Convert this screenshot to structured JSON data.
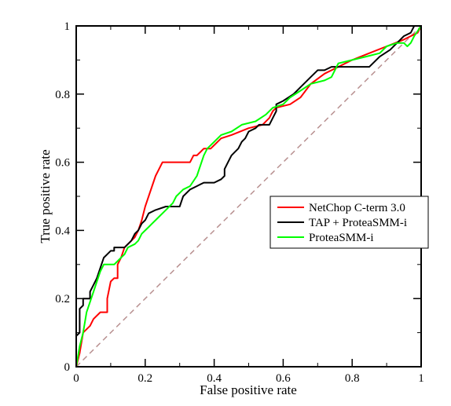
{
  "chart_data": {
    "type": "line",
    "xlabel": "False positive rate",
    "ylabel": "True positive rate",
    "xlim": [
      0,
      1
    ],
    "ylim": [
      0,
      1
    ],
    "xticks": [
      0,
      0.2,
      0.4,
      0.6,
      0.8,
      1
    ],
    "yticks": [
      0,
      0.2,
      0.4,
      0.6,
      0.8,
      1
    ],
    "xtick_labels": [
      "0",
      "0.2",
      "0.4",
      "0.6",
      "0.8",
      "1"
    ],
    "ytick_labels": [
      "0",
      "0.2",
      "0.4",
      "0.6",
      "0.8",
      "1"
    ],
    "grid": false,
    "legend_position": "right",
    "series": [
      {
        "name": "NetChop C-term 3.0",
        "color": "#ff0000",
        "points": [
          [
            0,
            0
          ],
          [
            0.01,
            0.04
          ],
          [
            0.02,
            0.1
          ],
          [
            0.04,
            0.12
          ],
          [
            0.05,
            0.14
          ],
          [
            0.07,
            0.16
          ],
          [
            0.09,
            0.16
          ],
          [
            0.09,
            0.2
          ],
          [
            0.1,
            0.25
          ],
          [
            0.11,
            0.26
          ],
          [
            0.12,
            0.26
          ],
          [
            0.12,
            0.3
          ],
          [
            0.13,
            0.32
          ],
          [
            0.14,
            0.35
          ],
          [
            0.15,
            0.36
          ],
          [
            0.16,
            0.37
          ],
          [
            0.17,
            0.38
          ],
          [
            0.18,
            0.4
          ],
          [
            0.19,
            0.43
          ],
          [
            0.2,
            0.47
          ],
          [
            0.21,
            0.5
          ],
          [
            0.22,
            0.53
          ],
          [
            0.23,
            0.56
          ],
          [
            0.24,
            0.58
          ],
          [
            0.25,
            0.6
          ],
          [
            0.26,
            0.6
          ],
          [
            0.27,
            0.6
          ],
          [
            0.31,
            0.6
          ],
          [
            0.33,
            0.6
          ],
          [
            0.34,
            0.62
          ],
          [
            0.35,
            0.62
          ],
          [
            0.36,
            0.63
          ],
          [
            0.37,
            0.64
          ],
          [
            0.39,
            0.64
          ],
          [
            0.4,
            0.65
          ],
          [
            0.42,
            0.67
          ],
          [
            0.45,
            0.68
          ],
          [
            0.5,
            0.7
          ],
          [
            0.54,
            0.71
          ],
          [
            0.56,
            0.73
          ],
          [
            0.57,
            0.75
          ],
          [
            0.58,
            0.76
          ],
          [
            0.62,
            0.77
          ],
          [
            0.65,
            0.79
          ],
          [
            0.68,
            0.83
          ],
          [
            0.72,
            0.86
          ],
          [
            0.76,
            0.88
          ],
          [
            0.8,
            0.9
          ],
          [
            0.85,
            0.92
          ],
          [
            0.9,
            0.94
          ],
          [
            0.95,
            0.96
          ],
          [
            0.97,
            0.97
          ],
          [
            0.99,
            0.98
          ],
          [
            1,
            1
          ]
        ]
      },
      {
        "name": "TAP + ProteaSMM-i",
        "color": "#000000",
        "points": [
          [
            0,
            0
          ],
          [
            0,
            0.09
          ],
          [
            0.01,
            0.1
          ],
          [
            0.01,
            0.17
          ],
          [
            0.02,
            0.18
          ],
          [
            0.02,
            0.2
          ],
          [
            0.04,
            0.2
          ],
          [
            0.04,
            0.22
          ],
          [
            0.05,
            0.24
          ],
          [
            0.06,
            0.26
          ],
          [
            0.07,
            0.29
          ],
          [
            0.08,
            0.32
          ],
          [
            0.09,
            0.33
          ],
          [
            0.1,
            0.34
          ],
          [
            0.11,
            0.34
          ],
          [
            0.11,
            0.35
          ],
          [
            0.14,
            0.35
          ],
          [
            0.15,
            0.36
          ],
          [
            0.16,
            0.37
          ],
          [
            0.17,
            0.39
          ],
          [
            0.18,
            0.4
          ],
          [
            0.19,
            0.42
          ],
          [
            0.2,
            0.43
          ],
          [
            0.21,
            0.45
          ],
          [
            0.23,
            0.46
          ],
          [
            0.26,
            0.47
          ],
          [
            0.3,
            0.47
          ],
          [
            0.31,
            0.5
          ],
          [
            0.33,
            0.52
          ],
          [
            0.35,
            0.53
          ],
          [
            0.37,
            0.54
          ],
          [
            0.4,
            0.54
          ],
          [
            0.42,
            0.55
          ],
          [
            0.43,
            0.56
          ],
          [
            0.43,
            0.58
          ],
          [
            0.44,
            0.6
          ],
          [
            0.45,
            0.62
          ],
          [
            0.46,
            0.63
          ],
          [
            0.47,
            0.64
          ],
          [
            0.48,
            0.66
          ],
          [
            0.49,
            0.67
          ],
          [
            0.5,
            0.69
          ],
          [
            0.52,
            0.7
          ],
          [
            0.53,
            0.71
          ],
          [
            0.56,
            0.71
          ],
          [
            0.57,
            0.73
          ],
          [
            0.58,
            0.75
          ],
          [
            0.58,
            0.77
          ],
          [
            0.6,
            0.78
          ],
          [
            0.63,
            0.8
          ],
          [
            0.64,
            0.81
          ],
          [
            0.65,
            0.82
          ],
          [
            0.66,
            0.83
          ],
          [
            0.68,
            0.85
          ],
          [
            0.7,
            0.87
          ],
          [
            0.72,
            0.87
          ],
          [
            0.74,
            0.88
          ],
          [
            0.85,
            0.88
          ],
          [
            0.88,
            0.91
          ],
          [
            0.91,
            0.93
          ],
          [
            0.93,
            0.95
          ],
          [
            0.95,
            0.97
          ],
          [
            0.97,
            0.98
          ],
          [
            0.98,
            1
          ],
          [
            1,
            1
          ]
        ]
      },
      {
        "name": "ProteaSMM-i",
        "color": "#00ff00",
        "points": [
          [
            0,
            0
          ],
          [
            0.01,
            0.06
          ],
          [
            0.02,
            0.1
          ],
          [
            0.03,
            0.16
          ],
          [
            0.04,
            0.19
          ],
          [
            0.05,
            0.22
          ],
          [
            0.06,
            0.25
          ],
          [
            0.07,
            0.28
          ],
          [
            0.08,
            0.3
          ],
          [
            0.1,
            0.3
          ],
          [
            0.11,
            0.3
          ],
          [
            0.12,
            0.31
          ],
          [
            0.13,
            0.32
          ],
          [
            0.14,
            0.33
          ],
          [
            0.15,
            0.35
          ],
          [
            0.17,
            0.36
          ],
          [
            0.18,
            0.37
          ],
          [
            0.19,
            0.39
          ],
          [
            0.2,
            0.4
          ],
          [
            0.21,
            0.41
          ],
          [
            0.22,
            0.42
          ],
          [
            0.23,
            0.43
          ],
          [
            0.24,
            0.44
          ],
          [
            0.26,
            0.46
          ],
          [
            0.27,
            0.47
          ],
          [
            0.28,
            0.48
          ],
          [
            0.29,
            0.5
          ],
          [
            0.3,
            0.51
          ],
          [
            0.31,
            0.52
          ],
          [
            0.33,
            0.53
          ],
          [
            0.35,
            0.56
          ],
          [
            0.36,
            0.59
          ],
          [
            0.37,
            0.62
          ],
          [
            0.38,
            0.64
          ],
          [
            0.4,
            0.66
          ],
          [
            0.42,
            0.68
          ],
          [
            0.45,
            0.69
          ],
          [
            0.48,
            0.71
          ],
          [
            0.52,
            0.72
          ],
          [
            0.55,
            0.74
          ],
          [
            0.57,
            0.76
          ],
          [
            0.6,
            0.77
          ],
          [
            0.62,
            0.79
          ],
          [
            0.65,
            0.81
          ],
          [
            0.68,
            0.83
          ],
          [
            0.72,
            0.84
          ],
          [
            0.74,
            0.85
          ],
          [
            0.76,
            0.89
          ],
          [
            0.8,
            0.9
          ],
          [
            0.84,
            0.91
          ],
          [
            0.88,
            0.92
          ],
          [
            0.9,
            0.94
          ],
          [
            0.93,
            0.95
          ],
          [
            0.95,
            0.95
          ],
          [
            0.96,
            0.94
          ],
          [
            0.97,
            0.95
          ],
          [
            0.98,
            0.97
          ],
          [
            1,
            1
          ]
        ]
      }
    ],
    "reference_line": {
      "color": "#b89090",
      "points": [
        [
          0,
          0
        ],
        [
          1,
          1
        ]
      ]
    }
  }
}
